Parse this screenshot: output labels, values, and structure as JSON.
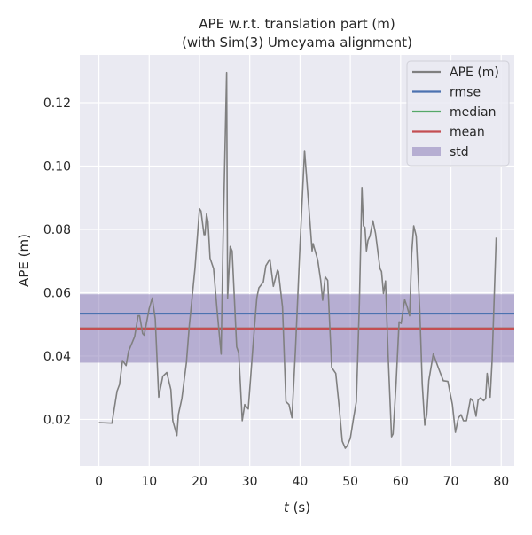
{
  "chart_data": {
    "type": "line",
    "title": "APE w.r.t. translation part (m)",
    "subtitle": "(with Sim(3) Umeyama alignment)",
    "xlabel_italic": "t",
    "xlabel_rest": " (s)",
    "ylabel": "APE (m)",
    "xlim": [
      -3.8,
      82.6
    ],
    "ylim": [
      0.0053,
      0.1351
    ],
    "xticks": [
      0,
      10,
      20,
      30,
      40,
      50,
      60,
      70,
      80
    ],
    "xtick_labels": [
      "0",
      "10",
      "20",
      "30",
      "40",
      "50",
      "60",
      "70",
      "80"
    ],
    "yticks": [
      0.02,
      0.04,
      0.06,
      0.08,
      0.1,
      0.12
    ],
    "ytick_labels": [
      "0.02",
      "0.04",
      "0.06",
      "0.08",
      "0.10",
      "0.12"
    ],
    "grid": true,
    "legend_position": "top-right",
    "colors": {
      "background": "#eaeaf2",
      "ape": "#808080",
      "rmse": "#4c72b0",
      "median": "#55a868",
      "mean": "#c44e52",
      "std": "#8172b2"
    },
    "legend": [
      "APE (m)",
      "rmse",
      "median",
      "mean",
      "std"
    ],
    "stats": {
      "rmse": 0.0534,
      "median": 0.0487,
      "mean": 0.0487,
      "std": 0.0108
    },
    "series": [
      {
        "name": "APE (m)",
        "points": [
          [
            0,
            0.019
          ],
          [
            2.6,
            0.0188
          ],
          [
            3.6,
            0.0289
          ],
          [
            4.1,
            0.031
          ],
          [
            4.7,
            0.0386
          ],
          [
            5.4,
            0.037
          ],
          [
            5.9,
            0.0415
          ],
          [
            7.1,
            0.0461
          ],
          [
            7.8,
            0.0527
          ],
          [
            8.1,
            0.0527
          ],
          [
            8.7,
            0.0471
          ],
          [
            9.0,
            0.0466
          ],
          [
            10.0,
            0.055
          ],
          [
            10.6,
            0.0583
          ],
          [
            11.2,
            0.0517
          ],
          [
            11.9,
            0.027
          ],
          [
            12.7,
            0.0336
          ],
          [
            13.5,
            0.0348
          ],
          [
            14.3,
            0.0294
          ],
          [
            14.7,
            0.0196
          ],
          [
            15.5,
            0.0149
          ],
          [
            15.8,
            0.0215
          ],
          [
            16.5,
            0.0266
          ],
          [
            17.4,
            0.0378
          ],
          [
            18.0,
            0.0499
          ],
          [
            18.3,
            0.0546
          ],
          [
            19.1,
            0.0677
          ],
          [
            20.0,
            0.0865
          ],
          [
            20.3,
            0.0858
          ],
          [
            20.9,
            0.0783
          ],
          [
            21.1,
            0.0783
          ],
          [
            21.4,
            0.0848
          ],
          [
            21.7,
            0.0825
          ],
          [
            22.1,
            0.0709
          ],
          [
            22.8,
            0.0676
          ],
          [
            23.5,
            0.0546
          ],
          [
            24.3,
            0.0406
          ],
          [
            24.7,
            0.0769
          ],
          [
            25.4,
            0.1296
          ],
          [
            25.6,
            0.0583
          ],
          [
            26.1,
            0.0746
          ],
          [
            26.5,
            0.0732
          ],
          [
            27.4,
            0.0429
          ],
          [
            27.8,
            0.041
          ],
          [
            28.1,
            0.0322
          ],
          [
            28.5,
            0.0196
          ],
          [
            29.0,
            0.0247
          ],
          [
            29.7,
            0.0233
          ],
          [
            30.6,
            0.0424
          ],
          [
            31.4,
            0.0583
          ],
          [
            31.8,
            0.0615
          ],
          [
            32.7,
            0.0634
          ],
          [
            33.2,
            0.0685
          ],
          [
            34.0,
            0.0706
          ],
          [
            34.7,
            0.062
          ],
          [
            35.5,
            0.0671
          ],
          [
            35.7,
            0.0667
          ],
          [
            36.5,
            0.0555
          ],
          [
            37.2,
            0.0256
          ],
          [
            37.8,
            0.0247
          ],
          [
            38.4,
            0.0205
          ],
          [
            39.1,
            0.0424
          ],
          [
            40.0,
            0.0751
          ],
          [
            40.9,
            0.1049
          ],
          [
            42.1,
            0.0797
          ],
          [
            42.4,
            0.0732
          ],
          [
            42.6,
            0.0755
          ],
          [
            43.5,
            0.0704
          ],
          [
            44.1,
            0.0639
          ],
          [
            44.5,
            0.0576
          ],
          [
            45.0,
            0.065
          ],
          [
            45.5,
            0.0639
          ],
          [
            46.3,
            0.0364
          ],
          [
            47.1,
            0.0345
          ],
          [
            47.8,
            0.0238
          ],
          [
            48.4,
            0.0131
          ],
          [
            49.0,
            0.0109
          ],
          [
            49.4,
            0.0117
          ],
          [
            50.0,
            0.014
          ],
          [
            50.6,
            0.02
          ],
          [
            51.2,
            0.0256
          ],
          [
            51.8,
            0.0564
          ],
          [
            52.3,
            0.0932
          ],
          [
            52.6,
            0.0811
          ],
          [
            52.9,
            0.0806
          ],
          [
            53.2,
            0.0732
          ],
          [
            53.5,
            0.0765
          ],
          [
            53.9,
            0.0779
          ],
          [
            54.5,
            0.0827
          ],
          [
            55.0,
            0.0788
          ],
          [
            55.9,
            0.0676
          ],
          [
            56.2,
            0.0667
          ],
          [
            56.6,
            0.0597
          ],
          [
            57.0,
            0.0637
          ],
          [
            57.5,
            0.0406
          ],
          [
            58.2,
            0.0145
          ],
          [
            58.5,
            0.0154
          ],
          [
            59.1,
            0.0312
          ],
          [
            59.7,
            0.0508
          ],
          [
            60.1,
            0.0503
          ],
          [
            60.8,
            0.0578
          ],
          [
            61.3,
            0.0555
          ],
          [
            61.8,
            0.0527
          ],
          [
            62.2,
            0.0723
          ],
          [
            62.6,
            0.0811
          ],
          [
            63.1,
            0.0779
          ],
          [
            63.8,
            0.0546
          ],
          [
            64.3,
            0.0312
          ],
          [
            64.8,
            0.0182
          ],
          [
            65.2,
            0.0215
          ],
          [
            65.6,
            0.0322
          ],
          [
            66.5,
            0.0407
          ],
          [
            67.6,
            0.0359
          ],
          [
            68.5,
            0.0322
          ],
          [
            69.4,
            0.032
          ],
          [
            70.3,
            0.0247
          ],
          [
            70.9,
            0.0159
          ],
          [
            71.5,
            0.0205
          ],
          [
            72.0,
            0.0215
          ],
          [
            72.5,
            0.0196
          ],
          [
            73.1,
            0.0196
          ],
          [
            73.9,
            0.0266
          ],
          [
            74.4,
            0.0257
          ],
          [
            75.0,
            0.021
          ],
          [
            75.4,
            0.0261
          ],
          [
            75.9,
            0.0268
          ],
          [
            76.5,
            0.0259
          ],
          [
            76.9,
            0.0266
          ],
          [
            77.2,
            0.0345
          ],
          [
            77.8,
            0.027
          ],
          [
            78.2,
            0.0387
          ],
          [
            79.0,
            0.0774
          ]
        ]
      }
    ]
  }
}
